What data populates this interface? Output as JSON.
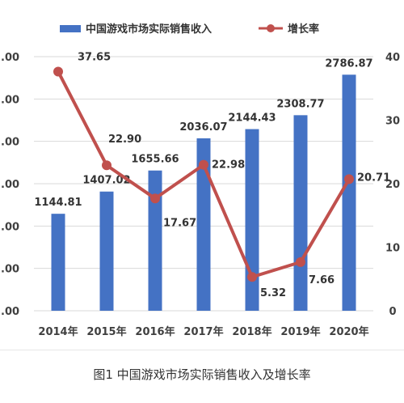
{
  "caption": "图1 中国游戏市场实际销售收入及增长率",
  "chart_data": {
    "type": "bar+line",
    "categories": [
      "2014年",
      "2015年",
      "2016年",
      "2017年",
      "2018年",
      "2019年",
      "2020年"
    ],
    "series": [
      {
        "name": "中国游戏市场实际销售收入",
        "type": "bar",
        "axis": "left",
        "color": "#4472c4",
        "values": [
          1144.81,
          1407.02,
          1655.66,
          2036.07,
          2144.43,
          2308.77,
          2786.87
        ],
        "labels": [
          "1144.81",
          "1407.02",
          "1655.66",
          "2036.07",
          "2144.43",
          "2308.77",
          "2786.87"
        ]
      },
      {
        "name": "增长率",
        "type": "line",
        "axis": "right",
        "color": "#c0504d",
        "values": [
          37.65,
          22.9,
          17.67,
          22.98,
          5.32,
          7.66,
          20.71
        ],
        "labels": [
          "37.65",
          "22.90",
          "17.67",
          "22.98",
          "5.32",
          "7.66",
          "20.71"
        ]
      }
    ],
    "y_left": {
      "min": 0,
      "max": 3000,
      "ticks": [
        0,
        500,
        1000,
        1500,
        2000,
        2500,
        3000
      ],
      "tick_labels": [
        ".00",
        ".00",
        ".00",
        ".00",
        ".00",
        ".00",
        ".00"
      ]
    },
    "y_right": {
      "min": 0,
      "max": 40,
      "ticks": [
        0,
        10,
        20,
        30,
        40
      ],
      "tick_labels": [
        "0",
        "10",
        "20",
        "30",
        "40"
      ]
    },
    "legend_position": "top",
    "grid": true
  }
}
